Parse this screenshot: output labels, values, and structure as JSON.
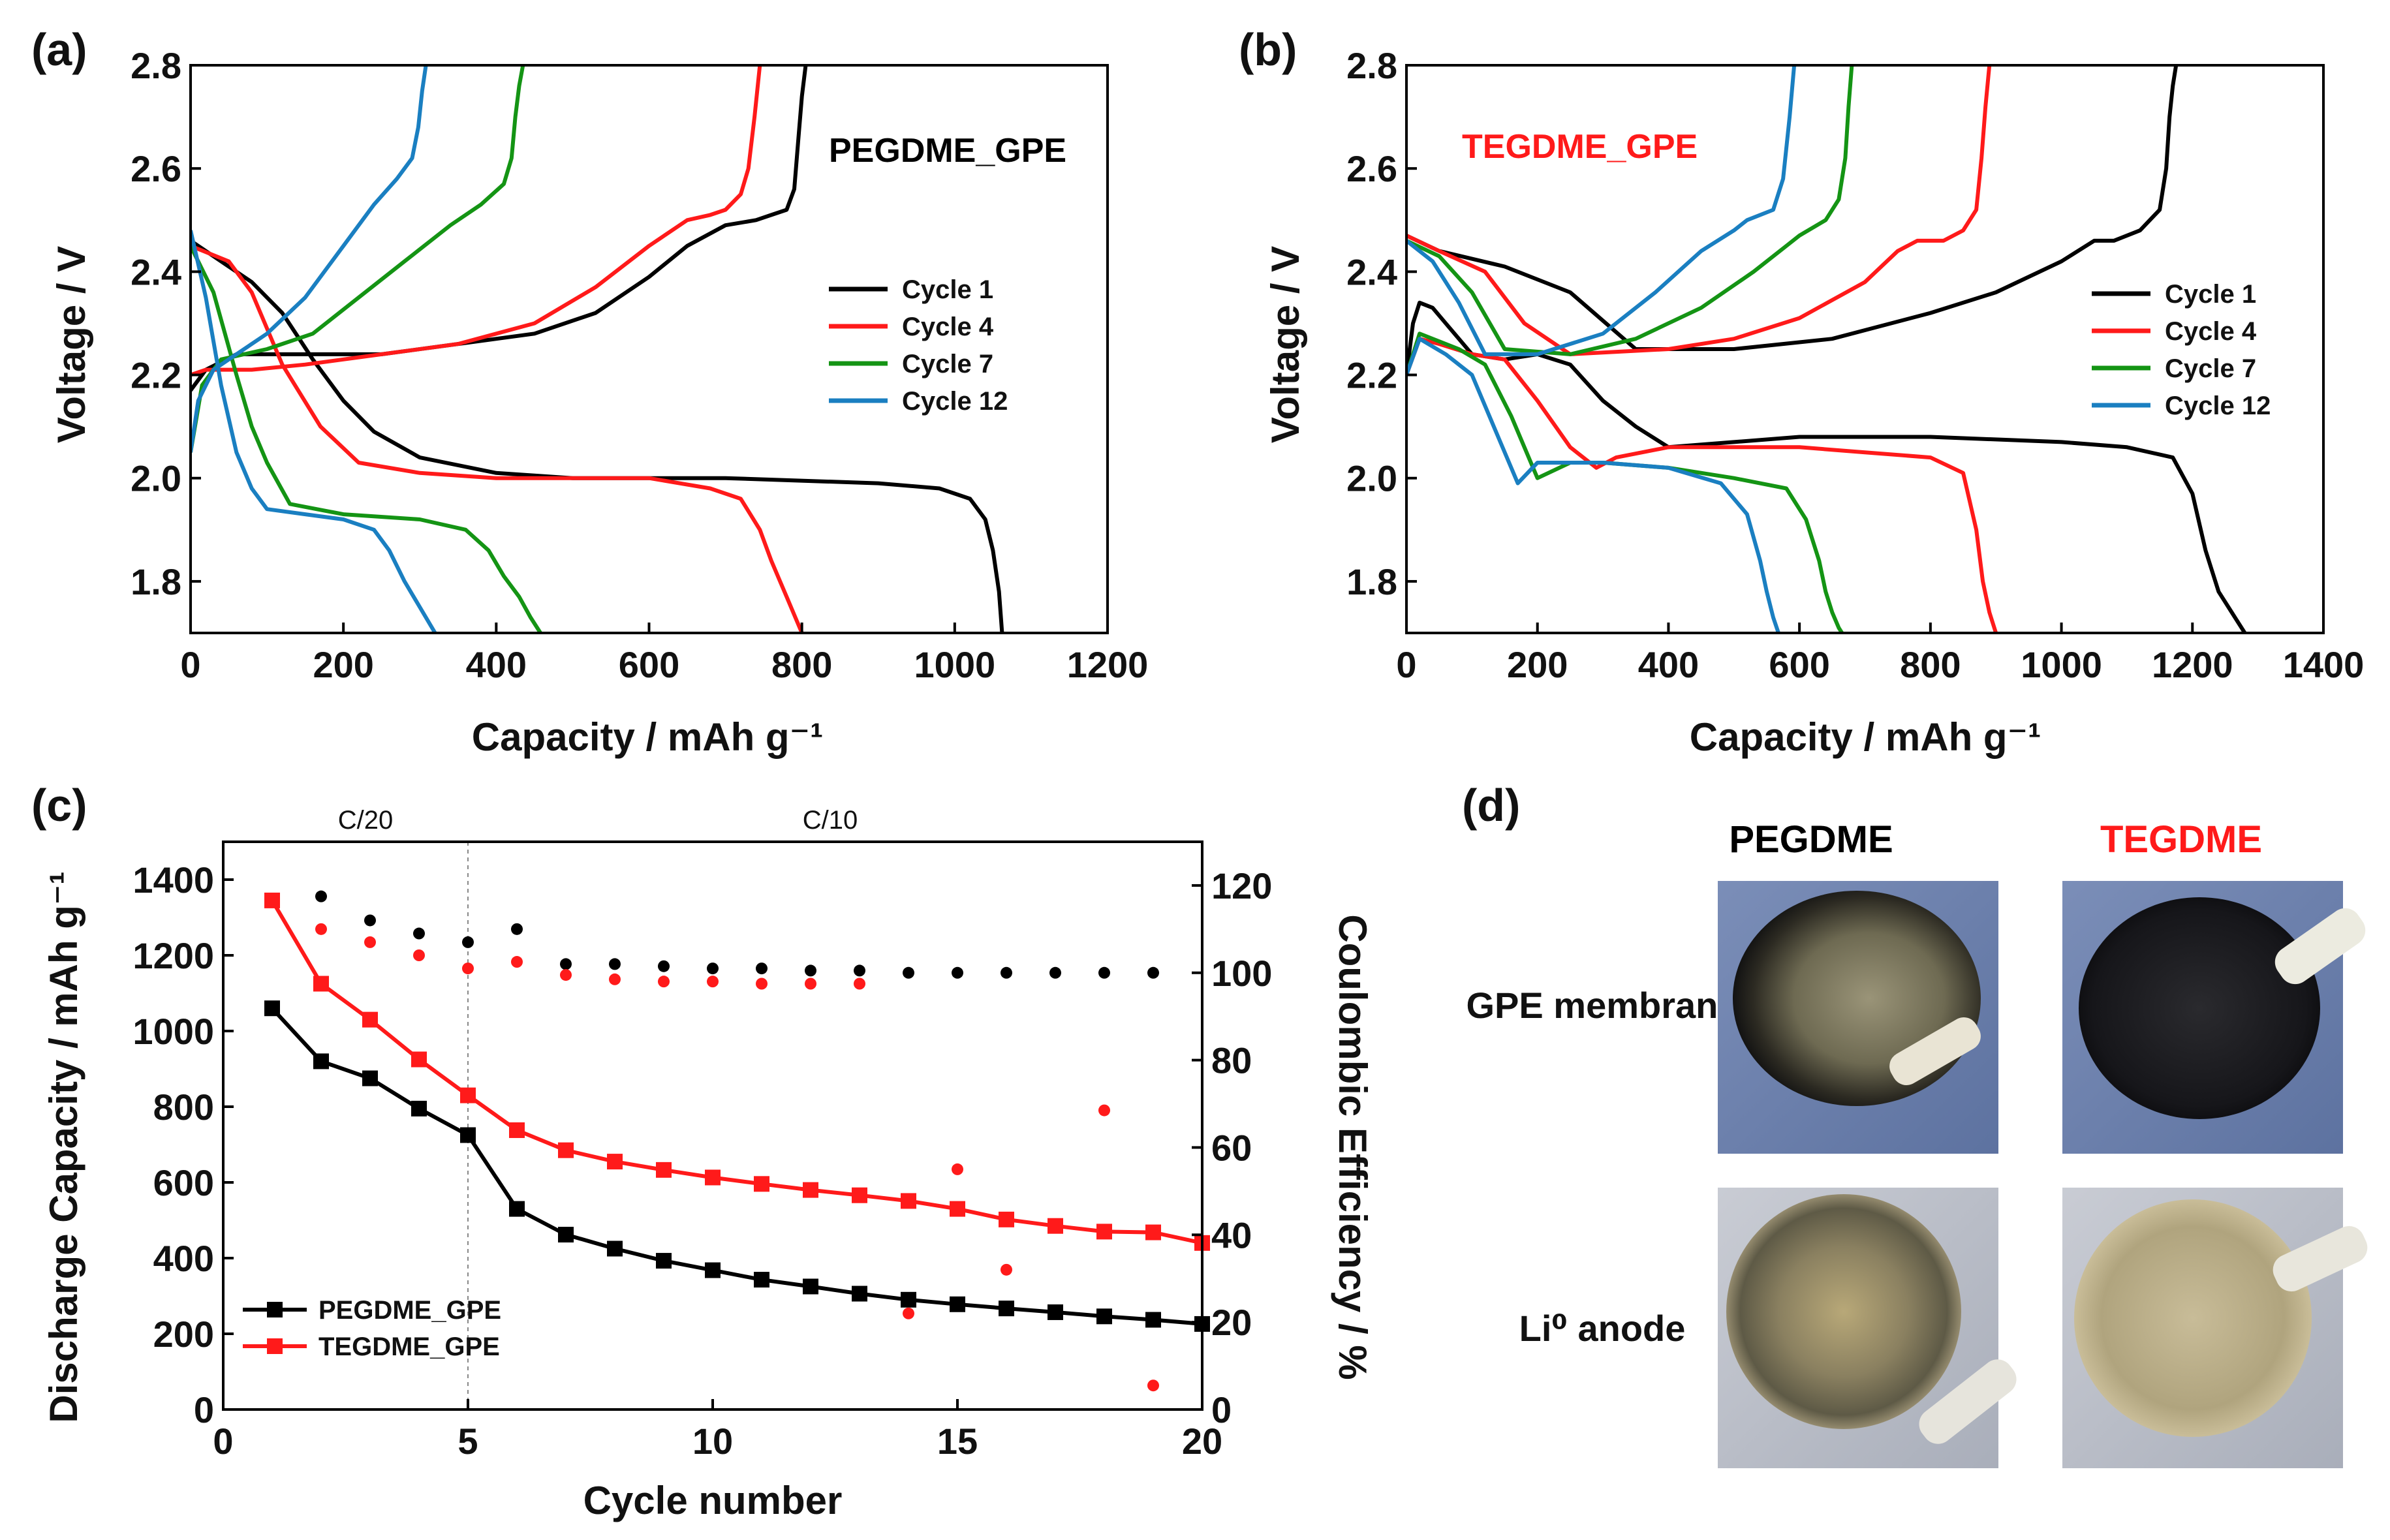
{
  "colors": {
    "black": "#000000",
    "red": "#ff1a1a",
    "green": "#149414",
    "blue": "#1a7fc1",
    "bg": "#ffffff"
  },
  "chart_data": [
    {
      "panel": "(a)",
      "type": "line",
      "annotation": "PEGDME_GPE",
      "annotation_color": "#000000",
      "xlabel": "Capacity / mAh g⁻¹",
      "ylabel": "Voltage / V",
      "xlim": [
        0,
        1200
      ],
      "ylim": [
        1.7,
        2.8
      ],
      "xticks": [
        0,
        200,
        400,
        600,
        800,
        1000,
        1200
      ],
      "yticks": [
        1.8,
        2.0,
        2.2,
        2.4,
        2.6,
        2.8
      ],
      "xtick_labels": [
        "0",
        "200",
        "400",
        "600",
        "800",
        "1000",
        "1200"
      ],
      "ytick_labels": [
        "1.8",
        "2.0",
        "2.2",
        "2.4",
        "2.6",
        "2.8"
      ],
      "legend": [
        "Cycle 1",
        "Cycle 4",
        "Cycle 7",
        "Cycle 12"
      ],
      "series": [
        {
          "name": "Cycle 1 discharge",
          "color": "#000000",
          "x": [
            0,
            30,
            80,
            120,
            160,
            200,
            240,
            300,
            400,
            500,
            700,
            900,
            980,
            1020,
            1040,
            1050,
            1058,
            1062
          ],
          "y": [
            2.46,
            2.43,
            2.38,
            2.32,
            2.23,
            2.15,
            2.09,
            2.04,
            2.01,
            2.0,
            2.0,
            1.99,
            1.98,
            1.96,
            1.92,
            1.86,
            1.78,
            1.7
          ]
        },
        {
          "name": "Cycle 1 charge",
          "color": "#000000",
          "x": [
            0,
            20,
            60,
            150,
            250,
            350,
            450,
            530,
            600,
            650,
            700,
            740,
            760,
            780,
            790,
            795,
            800,
            805
          ],
          "y": [
            2.17,
            2.21,
            2.24,
            2.24,
            2.24,
            2.26,
            2.28,
            2.32,
            2.39,
            2.45,
            2.49,
            2.5,
            2.51,
            2.52,
            2.56,
            2.65,
            2.74,
            2.8
          ]
        },
        {
          "name": "Cycle 4 discharge",
          "color": "#ff1a1a",
          "x": [
            0,
            50,
            80,
            120,
            170,
            220,
            300,
            400,
            500,
            600,
            680,
            720,
            745,
            760,
            780,
            800
          ],
          "y": [
            2.45,
            2.42,
            2.36,
            2.22,
            2.1,
            2.03,
            2.01,
            2.0,
            2.0,
            2.0,
            1.98,
            1.96,
            1.9,
            1.84,
            1.77,
            1.7
          ]
        },
        {
          "name": "Cycle 4 charge",
          "color": "#ff1a1a",
          "x": [
            0,
            20,
            80,
            150,
            250,
            350,
            450,
            530,
            600,
            650,
            680,
            700,
            720,
            730,
            738,
            745
          ],
          "y": [
            2.2,
            2.21,
            2.21,
            2.22,
            2.24,
            2.26,
            2.3,
            2.37,
            2.45,
            2.5,
            2.51,
            2.52,
            2.55,
            2.6,
            2.7,
            2.8
          ]
        },
        {
          "name": "Cycle 7 discharge",
          "color": "#149414",
          "x": [
            0,
            30,
            60,
            80,
            100,
            130,
            200,
            300,
            360,
            390,
            410,
            430,
            445,
            458
          ],
          "y": [
            2.45,
            2.36,
            2.2,
            2.1,
            2.03,
            1.95,
            1.93,
            1.92,
            1.9,
            1.86,
            1.81,
            1.77,
            1.73,
            1.7
          ]
        },
        {
          "name": "Cycle 7 charge",
          "color": "#149414",
          "x": [
            0,
            15,
            40,
            100,
            160,
            220,
            280,
            340,
            380,
            410,
            420,
            425,
            430,
            435
          ],
          "y": [
            2.05,
            2.18,
            2.23,
            2.25,
            2.28,
            2.35,
            2.42,
            2.49,
            2.53,
            2.57,
            2.62,
            2.7,
            2.76,
            2.8
          ]
        },
        {
          "name": "Cycle 12 discharge",
          "color": "#1a7fc1",
          "x": [
            0,
            20,
            40,
            60,
            80,
            100,
            150,
            200,
            240,
            260,
            280,
            300,
            320
          ],
          "y": [
            2.48,
            2.35,
            2.18,
            2.05,
            1.98,
            1.94,
            1.93,
            1.92,
            1.9,
            1.86,
            1.8,
            1.75,
            1.7
          ]
        },
        {
          "name": "Cycle 12 charge",
          "color": "#1a7fc1",
          "x": [
            0,
            10,
            30,
            60,
            100,
            150,
            200,
            240,
            270,
            290,
            298,
            303,
            308
          ],
          "y": [
            2.05,
            2.15,
            2.21,
            2.24,
            2.28,
            2.35,
            2.45,
            2.53,
            2.58,
            2.62,
            2.68,
            2.75,
            2.8
          ]
        }
      ]
    },
    {
      "panel": "(b)",
      "type": "line",
      "annotation": "TEGDME_GPE",
      "annotation_color": "#ff1a1a",
      "xlabel": "Capacity / mAh g⁻¹",
      "ylabel": "Voltage / V",
      "xlim": [
        0,
        1400
      ],
      "ylim": [
        1.7,
        2.8
      ],
      "xticks": [
        0,
        200,
        400,
        600,
        800,
        1000,
        1200,
        1400
      ],
      "yticks": [
        1.8,
        2.0,
        2.2,
        2.4,
        2.6,
        2.8
      ],
      "xtick_labels": [
        "0",
        "200",
        "400",
        "600",
        "800",
        "1000",
        "1200",
        "1400"
      ],
      "ytick_labels": [
        "1.8",
        "2.0",
        "2.2",
        "2.4",
        "2.6",
        "2.8"
      ],
      "legend": [
        "Cycle 1",
        "Cycle 4",
        "Cycle 7",
        "Cycle 12"
      ],
      "series": [
        {
          "name": "Cycle 1 discharge",
          "color": "#000000",
          "x": [
            0,
            10,
            20,
            40,
            60,
            80,
            100,
            150,
            200,
            250,
            300,
            350,
            400,
            500,
            600,
            800,
            1000,
            1100,
            1170,
            1200,
            1220,
            1240,
            1260,
            1280
          ],
          "y": [
            2.2,
            2.3,
            2.34,
            2.33,
            2.3,
            2.27,
            2.24,
            2.23,
            2.24,
            2.22,
            2.15,
            2.1,
            2.06,
            2.07,
            2.08,
            2.08,
            2.07,
            2.06,
            2.04,
            1.97,
            1.86,
            1.78,
            1.74,
            1.7
          ]
        },
        {
          "name": "Cycle 1 charge",
          "color": "#000000",
          "x": [
            0,
            50,
            150,
            250,
            350,
            500,
            650,
            800,
            900,
            1000,
            1050,
            1080,
            1120,
            1150,
            1160,
            1165,
            1170,
            1175
          ],
          "y": [
            2.47,
            2.44,
            2.41,
            2.36,
            2.25,
            2.25,
            2.27,
            2.32,
            2.36,
            2.42,
            2.46,
            2.46,
            2.48,
            2.52,
            2.6,
            2.7,
            2.76,
            2.8
          ]
        },
        {
          "name": "Cycle 4 discharge",
          "color": "#ff1a1a",
          "x": [
            0,
            20,
            50,
            100,
            150,
            200,
            250,
            290,
            320,
            400,
            500,
            600,
            700,
            800,
            850,
            870,
            880,
            890,
            900
          ],
          "y": [
            2.2,
            2.27,
            2.26,
            2.24,
            2.23,
            2.15,
            2.06,
            2.02,
            2.04,
            2.06,
            2.06,
            2.06,
            2.05,
            2.04,
            2.01,
            1.9,
            1.8,
            1.74,
            1.7
          ]
        },
        {
          "name": "Cycle 4 charge",
          "color": "#ff1a1a",
          "x": [
            0,
            50,
            120,
            180,
            250,
            400,
            500,
            600,
            700,
            750,
            780,
            820,
            850,
            870,
            878,
            884,
            890
          ],
          "y": [
            2.47,
            2.44,
            2.4,
            2.3,
            2.24,
            2.25,
            2.27,
            2.31,
            2.38,
            2.44,
            2.46,
            2.46,
            2.48,
            2.52,
            2.62,
            2.72,
            2.8
          ]
        },
        {
          "name": "Cycle 7 discharge",
          "color": "#149414",
          "x": [
            0,
            20,
            80,
            120,
            160,
            200,
            250,
            300,
            400,
            500,
            580,
            610,
            630,
            640,
            650,
            660,
            665
          ],
          "y": [
            2.2,
            2.28,
            2.25,
            2.22,
            2.12,
            2.0,
            2.03,
            2.03,
            2.02,
            2.0,
            1.98,
            1.92,
            1.84,
            1.78,
            1.74,
            1.71,
            1.7
          ]
        },
        {
          "name": "Cycle 7 charge",
          "color": "#149414",
          "x": [
            0,
            50,
            100,
            150,
            250,
            350,
            450,
            530,
            580,
            600,
            640,
            660,
            670,
            675,
            680
          ],
          "y": [
            2.46,
            2.43,
            2.36,
            2.25,
            2.24,
            2.27,
            2.33,
            2.4,
            2.45,
            2.47,
            2.5,
            2.54,
            2.62,
            2.72,
            2.8
          ]
        },
        {
          "name": "Cycle 12 discharge",
          "color": "#1a7fc1",
          "x": [
            0,
            20,
            60,
            100,
            140,
            170,
            200,
            300,
            400,
            480,
            520,
            540,
            550,
            560,
            568
          ],
          "y": [
            2.2,
            2.27,
            2.24,
            2.2,
            2.08,
            1.99,
            2.03,
            2.03,
            2.02,
            1.99,
            1.93,
            1.84,
            1.78,
            1.73,
            1.7
          ]
        },
        {
          "name": "Cycle 12 charge",
          "color": "#1a7fc1",
          "x": [
            0,
            40,
            80,
            120,
            200,
            300,
            380,
            450,
            500,
            520,
            560,
            575,
            585,
            592
          ],
          "y": [
            2.46,
            2.42,
            2.34,
            2.24,
            2.24,
            2.28,
            2.36,
            2.44,
            2.48,
            2.5,
            2.52,
            2.58,
            2.7,
            2.8
          ]
        }
      ]
    },
    {
      "panel": "(c)",
      "type": "line+scatter",
      "xlabel": "Cycle number",
      "ylabel": "Discharge Capacity / mAh g⁻¹",
      "ylabel_right": "Coulombic Efficiency / %",
      "xlim": [
        0,
        20
      ],
      "ylim": [
        0,
        1500
      ],
      "ylim_right": [
        0,
        130
      ],
      "xticks": [
        0,
        5,
        10,
        15,
        20
      ],
      "yticks": [
        0,
        200,
        400,
        600,
        800,
        1000,
        1200,
        1400
      ],
      "yticks_right": [
        0,
        20,
        40,
        60,
        80,
        100,
        120
      ],
      "xtick_labels": [
        "0",
        "5",
        "10",
        "15",
        "20"
      ],
      "ytick_labels": [
        "0",
        "200",
        "400",
        "600",
        "800",
        "1000",
        "1200",
        "1400"
      ],
      "ytick_labels_right": [
        "0",
        "20",
        "40",
        "60",
        "80",
        "100",
        "120"
      ],
      "rate_labels": [
        "C/20",
        "C/10"
      ],
      "rate_divider_x": 5,
      "legend": [
        "PEGDME_GPE",
        "TEGDME_GPE"
      ],
      "x": [
        1,
        2,
        3,
        4,
        5,
        6,
        7,
        8,
        9,
        10,
        11,
        12,
        13,
        14,
        15,
        16,
        17,
        18,
        19,
        20
      ],
      "series": [
        {
          "name": "PEGDME_GPE",
          "color": "#000000",
          "axis": "left",
          "values": [
            1060,
            920,
            875,
            795,
            725,
            530,
            462,
            425,
            393,
            368,
            343,
            325,
            306,
            290,
            278,
            267,
            257,
            246,
            237,
            226
          ]
        },
        {
          "name": "TEGDME_GPE",
          "color": "#ff1a1a",
          "axis": "left",
          "values": [
            1345,
            1125,
            1030,
            925,
            830,
            738,
            685,
            655,
            633,
            613,
            596,
            580,
            566,
            551,
            530,
            502,
            485,
            470,
            468,
            440
          ]
        },
        {
          "name": "PEGDME_GPE CE",
          "color": "#000000",
          "axis": "right",
          "x": [
            2,
            3,
            4,
            5,
            6,
            7,
            8,
            9,
            10,
            11,
            12,
            13,
            14,
            15,
            16,
            17,
            18,
            19
          ],
          "values": [
            117.5,
            112,
            109,
            107,
            110,
            102,
            102,
            101.5,
            101,
            101,
            100.5,
            100.5,
            100,
            100,
            100,
            100,
            100,
            100
          ]
        },
        {
          "name": "TEGDME_GPE CE",
          "color": "#ff1a1a",
          "axis": "right",
          "x": [
            2,
            3,
            4,
            5,
            6,
            7,
            8,
            9,
            10,
            11,
            12,
            13,
            14,
            15,
            16,
            18,
            19
          ],
          "values": [
            110,
            107,
            104,
            101,
            102.5,
            99.5,
            98.5,
            98,
            98,
            97.5,
            97.5,
            97.5,
            22,
            55,
            32,
            68.5,
            5.5
          ]
        }
      ]
    }
  ],
  "panel_d": {
    "label": "(d)",
    "col_headers": [
      "PEGDME",
      "TEGDME"
    ],
    "col_header_colors": [
      "#000000",
      "#ff1a1a"
    ],
    "row_labels": [
      "GPE membrane",
      "Li⁰ anode"
    ]
  }
}
